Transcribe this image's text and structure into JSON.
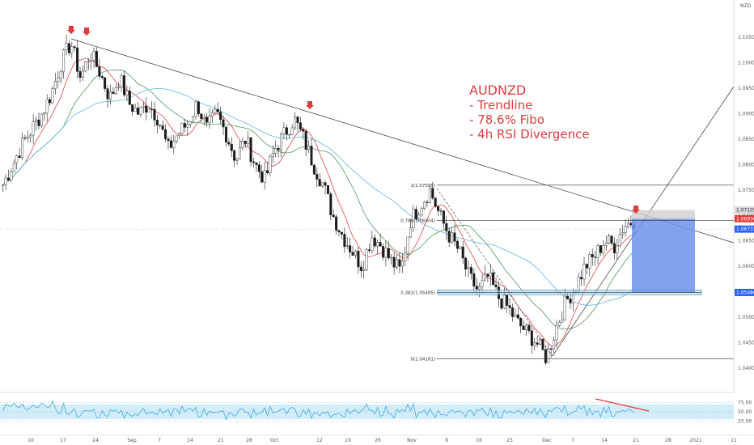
{
  "chart_data": {
    "type": "candlestick",
    "symbol": "AUDNZD",
    "corner_label": "NZD",
    "annotation": {
      "title": "AUDNZD",
      "lines": [
        "- Trendline",
        "- 78.6% Fibo",
        "- 4h RSI Divergence"
      ]
    },
    "price_axis_ticks": [
      "1.10500",
      "1.10000",
      "1.09500",
      "1.09000",
      "1.08500",
      "1.08000",
      "1.07500",
      "1.07000",
      "1.06500",
      "1.06000",
      "1.05500",
      "1.05000",
      "1.04500",
      "1.04000"
    ],
    "price_tags": [
      {
        "label": "1.07105",
        "color": "#d9d9d9",
        "text": "dark",
        "price": 1.07105
      },
      {
        "label": "1.06936",
        "color": "#e23b3b",
        "text": "light",
        "price": 1.06936
      },
      {
        "label": "1.06731",
        "color": "#2962ff",
        "text": "light",
        "price": 1.06731
      },
      {
        "label": "1.05486",
        "color": "#2962ff",
        "text": "light",
        "price": 1.05486
      }
    ],
    "x_axis_labels": [
      "10",
      "17",
      "24",
      "Sep",
      "7",
      "14",
      "21",
      "28",
      "Oct",
      "12",
      "19",
      "26",
      "Nov",
      "9",
      "16",
      "23",
      "Dec",
      "7",
      "14",
      "21",
      "28",
      "2021",
      "11"
    ],
    "fib_levels": [
      {
        "label": "1(1.07595)",
        "price": 1.07595
      },
      {
        "label": "0.786(1.06904)",
        "price": 1.06904
      },
      {
        "label": "0.382(1.05485)",
        "price": 1.05485
      },
      {
        "label": "0(1.04181)",
        "price": 1.04181
      }
    ],
    "rsi_axis_ticks": [
      "75.00",
      "50.00",
      "25.00"
    ],
    "ohlc_close_path": [
      1.076,
      1.08,
      1.084,
      1.087,
      1.09,
      1.094,
      1.1,
      1.104,
      1.097,
      1.102,
      1.098,
      1.093,
      1.097,
      1.092,
      1.09,
      1.092,
      1.089,
      1.083,
      1.086,
      1.088,
      1.092,
      1.087,
      1.09,
      1.086,
      1.081,
      1.085,
      1.08,
      1.077,
      1.083,
      1.086,
      1.089,
      1.085,
      1.08,
      1.076,
      1.07,
      1.066,
      1.063,
      1.06,
      1.066,
      1.064,
      1.061,
      1.059,
      1.069,
      1.072,
      1.075,
      1.07,
      1.066,
      1.063,
      1.058,
      1.055,
      1.058,
      1.054,
      1.052,
      1.049,
      1.047,
      1.045,
      1.042,
      1.048,
      1.053,
      1.056,
      1.06,
      1.062,
      1.065,
      1.064,
      1.068,
      1.069
    ]
  },
  "ui": {
    "accent": "#2962ff",
    "bull": "#1b1b1b",
    "bear": "#1b1b1b"
  }
}
